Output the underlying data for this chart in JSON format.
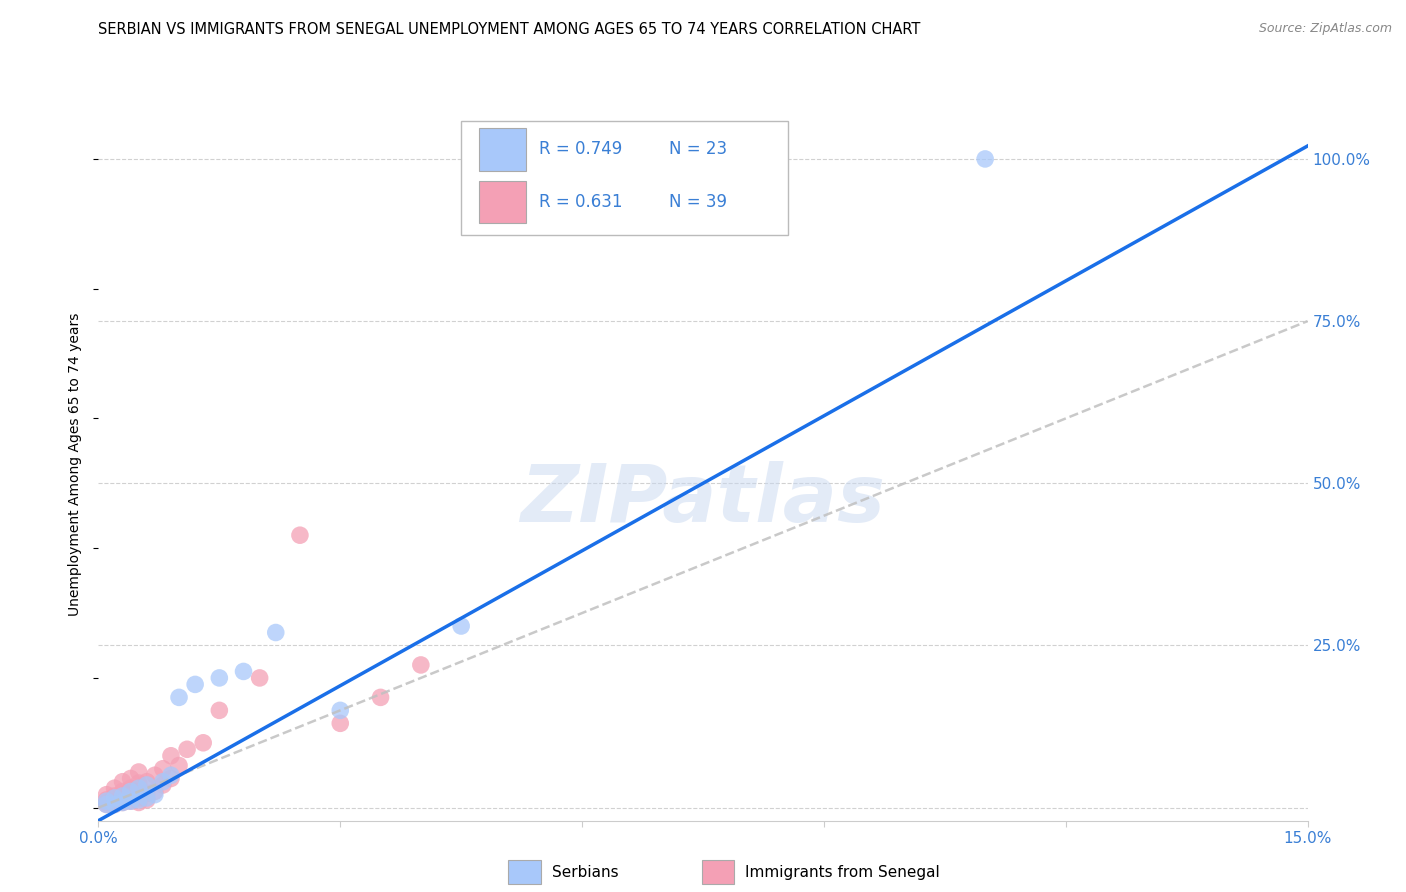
{
  "title": "SERBIAN VS IMMIGRANTS FROM SENEGAL UNEMPLOYMENT AMONG AGES 65 TO 74 YEARS CORRELATION CHART",
  "source": "Source: ZipAtlas.com",
  "ylabel": "Unemployment Among Ages 65 to 74 years",
  "xlim": [
    0.0,
    0.15
  ],
  "ylim": [
    -0.02,
    1.08
  ],
  "watermark": "ZIPatlas",
  "legend_r1": "R = 0.749",
  "legend_n1": "N = 23",
  "legend_r2": "R = 0.631",
  "legend_n2": "N = 39",
  "serbian_color": "#a8c8fa",
  "senegal_color": "#f4a0b5",
  "serbian_line_color": "#1a6fe8",
  "senegal_line_color": "#c0c0c0",
  "background_color": "#ffffff",
  "grid_color": "#cccccc",
  "title_fontsize": 10.5,
  "axis_label_fontsize": 10,
  "tick_fontsize": 11,
  "tick_color": "#3a7fd5",
  "serbian_scatter_x": [
    0.001,
    0.001,
    0.002,
    0.002,
    0.003,
    0.003,
    0.004,
    0.004,
    0.005,
    0.005,
    0.006,
    0.006,
    0.007,
    0.008,
    0.009,
    0.01,
    0.012,
    0.015,
    0.018,
    0.022,
    0.03,
    0.045,
    0.11
  ],
  "serbian_scatter_y": [
    0.005,
    0.01,
    0.005,
    0.015,
    0.008,
    0.018,
    0.01,
    0.025,
    0.012,
    0.03,
    0.015,
    0.035,
    0.02,
    0.04,
    0.05,
    0.17,
    0.19,
    0.2,
    0.21,
    0.27,
    0.15,
    0.28,
    1.0
  ],
  "senegal_scatter_x": [
    0.001,
    0.001,
    0.001,
    0.001,
    0.002,
    0.002,
    0.002,
    0.002,
    0.003,
    0.003,
    0.003,
    0.003,
    0.004,
    0.004,
    0.004,
    0.004,
    0.005,
    0.005,
    0.005,
    0.005,
    0.005,
    0.006,
    0.006,
    0.006,
    0.007,
    0.007,
    0.008,
    0.008,
    0.009,
    0.009,
    0.01,
    0.011,
    0.013,
    0.015,
    0.02,
    0.025,
    0.03,
    0.035,
    0.04
  ],
  "senegal_scatter_y": [
    0.005,
    0.008,
    0.012,
    0.02,
    0.005,
    0.01,
    0.018,
    0.03,
    0.008,
    0.015,
    0.025,
    0.04,
    0.01,
    0.02,
    0.03,
    0.045,
    0.008,
    0.015,
    0.025,
    0.038,
    0.055,
    0.012,
    0.022,
    0.04,
    0.025,
    0.05,
    0.035,
    0.06,
    0.045,
    0.08,
    0.065,
    0.09,
    0.1,
    0.15,
    0.2,
    0.42,
    0.13,
    0.17,
    0.22
  ],
  "serbian_line_x": [
    0.0,
    0.15
  ],
  "serbian_line_y": [
    -0.02,
    1.02
  ],
  "senegal_line_x": [
    0.0,
    0.15
  ],
  "senegal_line_y": [
    0.0,
    0.75
  ]
}
